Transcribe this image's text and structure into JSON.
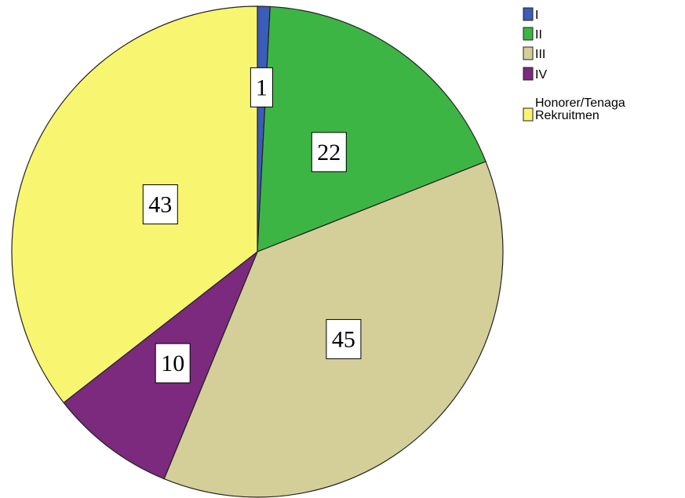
{
  "chart_data": {
    "type": "pie",
    "title": "",
    "categories": [
      "I",
      "II",
      "III",
      "IV",
      "Honorer/Tenaga Rekruitmen"
    ],
    "legend_lines": [
      [
        "I"
      ],
      [
        "II"
      ],
      [
        "III"
      ],
      [
        "IV"
      ],
      [
        "Honorer/Tenaga",
        "Rekruitmen"
      ]
    ],
    "values": [
      1,
      22,
      45,
      10,
      43
    ],
    "colors": [
      "#3b5cb8",
      "#3cb544",
      "#d4cf99",
      "#7b2a7e",
      "#f8f570"
    ],
    "legend": "top-right",
    "start_angle": "top",
    "direction": "clockwise"
  }
}
